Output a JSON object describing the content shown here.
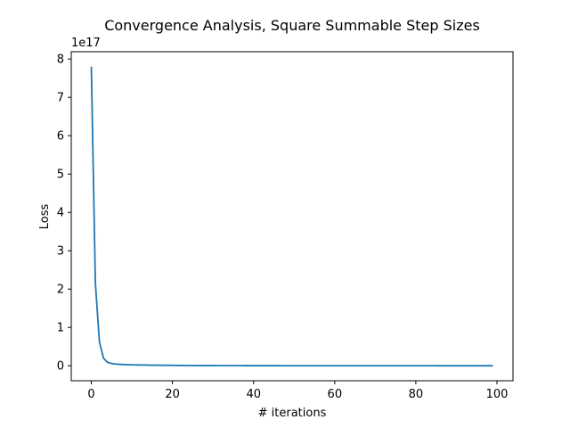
{
  "chart_data": {
    "type": "line",
    "title": "Convergence Analysis, Square Summable Step Sizes",
    "xlabel": "# iterations",
    "ylabel": "Loss",
    "y_offset_label": "1e17",
    "xlim": [
      -4.95,
      103.95
    ],
    "ylim": [
      -0.39,
      8.19
    ],
    "x_ticks": [
      0,
      20,
      40,
      60,
      80,
      100
    ],
    "x_tick_labels": [
      "0",
      "20",
      "40",
      "60",
      "80",
      "100"
    ],
    "y_ticks": [
      0,
      1,
      2,
      3,
      4,
      5,
      6,
      7,
      8
    ],
    "y_tick_labels": [
      "0",
      "1",
      "2",
      "3",
      "4",
      "5",
      "6",
      "7",
      "8"
    ],
    "y_scale_note": "values in units of 1e17",
    "grid": false,
    "line_color": "#1f77b4",
    "series": [
      {
        "x": [
          0,
          1,
          2,
          3,
          4,
          5,
          6,
          7,
          8,
          9,
          10,
          11,
          12,
          13,
          14,
          15,
          16,
          17,
          18,
          19,
          20,
          21,
          22,
          23,
          24,
          25,
          26,
          27,
          28,
          29,
          30,
          31,
          32,
          33,
          34,
          35,
          36,
          37,
          38,
          39,
          40,
          41,
          42,
          43,
          44,
          45,
          46,
          47,
          48,
          49,
          50,
          51,
          52,
          53,
          54,
          55,
          56,
          57,
          58,
          59,
          60,
          61,
          62,
          63,
          64,
          65,
          66,
          67,
          68,
          69,
          70,
          71,
          72,
          73,
          74,
          75,
          76,
          77,
          78,
          79,
          80,
          81,
          82,
          83,
          84,
          85,
          86,
          87,
          88,
          89,
          90,
          91,
          92,
          93,
          94,
          95,
          96,
          97,
          98,
          99
        ],
        "values": [
          7.8,
          2.15,
          0.62,
          0.2,
          0.09,
          0.06,
          0.045,
          0.038,
          0.033,
          0.029,
          0.026,
          0.023,
          0.021,
          0.019,
          0.017,
          0.016,
          0.015,
          0.014,
          0.013,
          0.012,
          0.011,
          0.01,
          0.0095,
          0.009,
          0.0085,
          0.008,
          0.0076,
          0.0072,
          0.0068,
          0.0065,
          0.0062,
          0.0059,
          0.0056,
          0.0054,
          0.0052,
          0.005,
          0.0048,
          0.0046,
          0.0044,
          0.0043,
          0.0041,
          0.004,
          0.0039,
          0.0037,
          0.0036,
          0.0035,
          0.0034,
          0.0033,
          0.0032,
          0.0031,
          0.003,
          0.0029,
          0.0029,
          0.0028,
          0.0027,
          0.0027,
          0.0026,
          0.0025,
          0.0025,
          0.0024,
          0.0024,
          0.0023,
          0.0023,
          0.0022,
          0.0022,
          0.0021,
          0.0021,
          0.002,
          0.002,
          0.002,
          0.0019,
          0.0019,
          0.0018,
          0.0018,
          0.0018,
          0.0017,
          0.0017,
          0.0017,
          0.0016,
          0.0016,
          0.0016,
          0.0016,
          0.0015,
          0.0015,
          0.0015,
          0.0015,
          0.0014,
          0.0014,
          0.0014,
          0.0014,
          0.0013,
          0.0013,
          0.0013,
          0.0013,
          0.0013,
          0.0012,
          0.0012,
          0.0012,
          0.0012,
          0.0012
        ]
      }
    ]
  }
}
